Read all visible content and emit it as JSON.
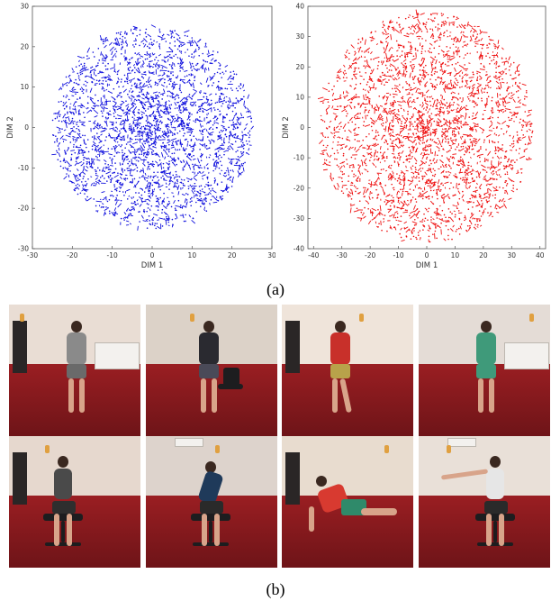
{
  "figure": {
    "caption_a": "(a)",
    "caption_b": "(b)"
  },
  "chart_data": [
    {
      "type": "scatter",
      "title": "",
      "xlabel": "DIM 1",
      "ylabel": "DIM 2",
      "xlim": [
        -30,
        30
      ],
      "ylim": [
        -30,
        30
      ],
      "xticks": [
        "-30",
        "-20",
        "-10",
        "0",
        "10",
        "20",
        "30"
      ],
      "yticks": [
        "30",
        "20",
        "10",
        "0",
        "-10",
        "-20",
        "-30"
      ],
      "color": "#1010dd",
      "cloud": {
        "shape": "disc",
        "center": [
          0,
          0
        ],
        "radius": 25
      }
    },
    {
      "type": "scatter",
      "title": "",
      "xlabel": "DIM 1",
      "ylabel": "DIM 2",
      "xlim": [
        -42,
        42
      ],
      "ylim": [
        -40,
        40
      ],
      "xticks": [
        "-40",
        "-30",
        "-20",
        "-10",
        "0",
        "10",
        "20",
        "30",
        "40"
      ],
      "yticks": [
        "40",
        "30",
        "20",
        "10",
        "0",
        "-10",
        "-20",
        "-30",
        "-40"
      ],
      "color": "#ee1010",
      "cloud": {
        "shape": "disc",
        "center": [
          0,
          0
        ],
        "radius": 38
      }
    }
  ],
  "photos": [
    {
      "pose": "walking-away"
    },
    {
      "pose": "phoning"
    },
    {
      "pose": "greeting"
    },
    {
      "pose": "walking-side"
    },
    {
      "pose": "sitting"
    },
    {
      "pose": "sitting-bent"
    },
    {
      "pose": "lying-down"
    },
    {
      "pose": "sitting-pointing"
    }
  ]
}
